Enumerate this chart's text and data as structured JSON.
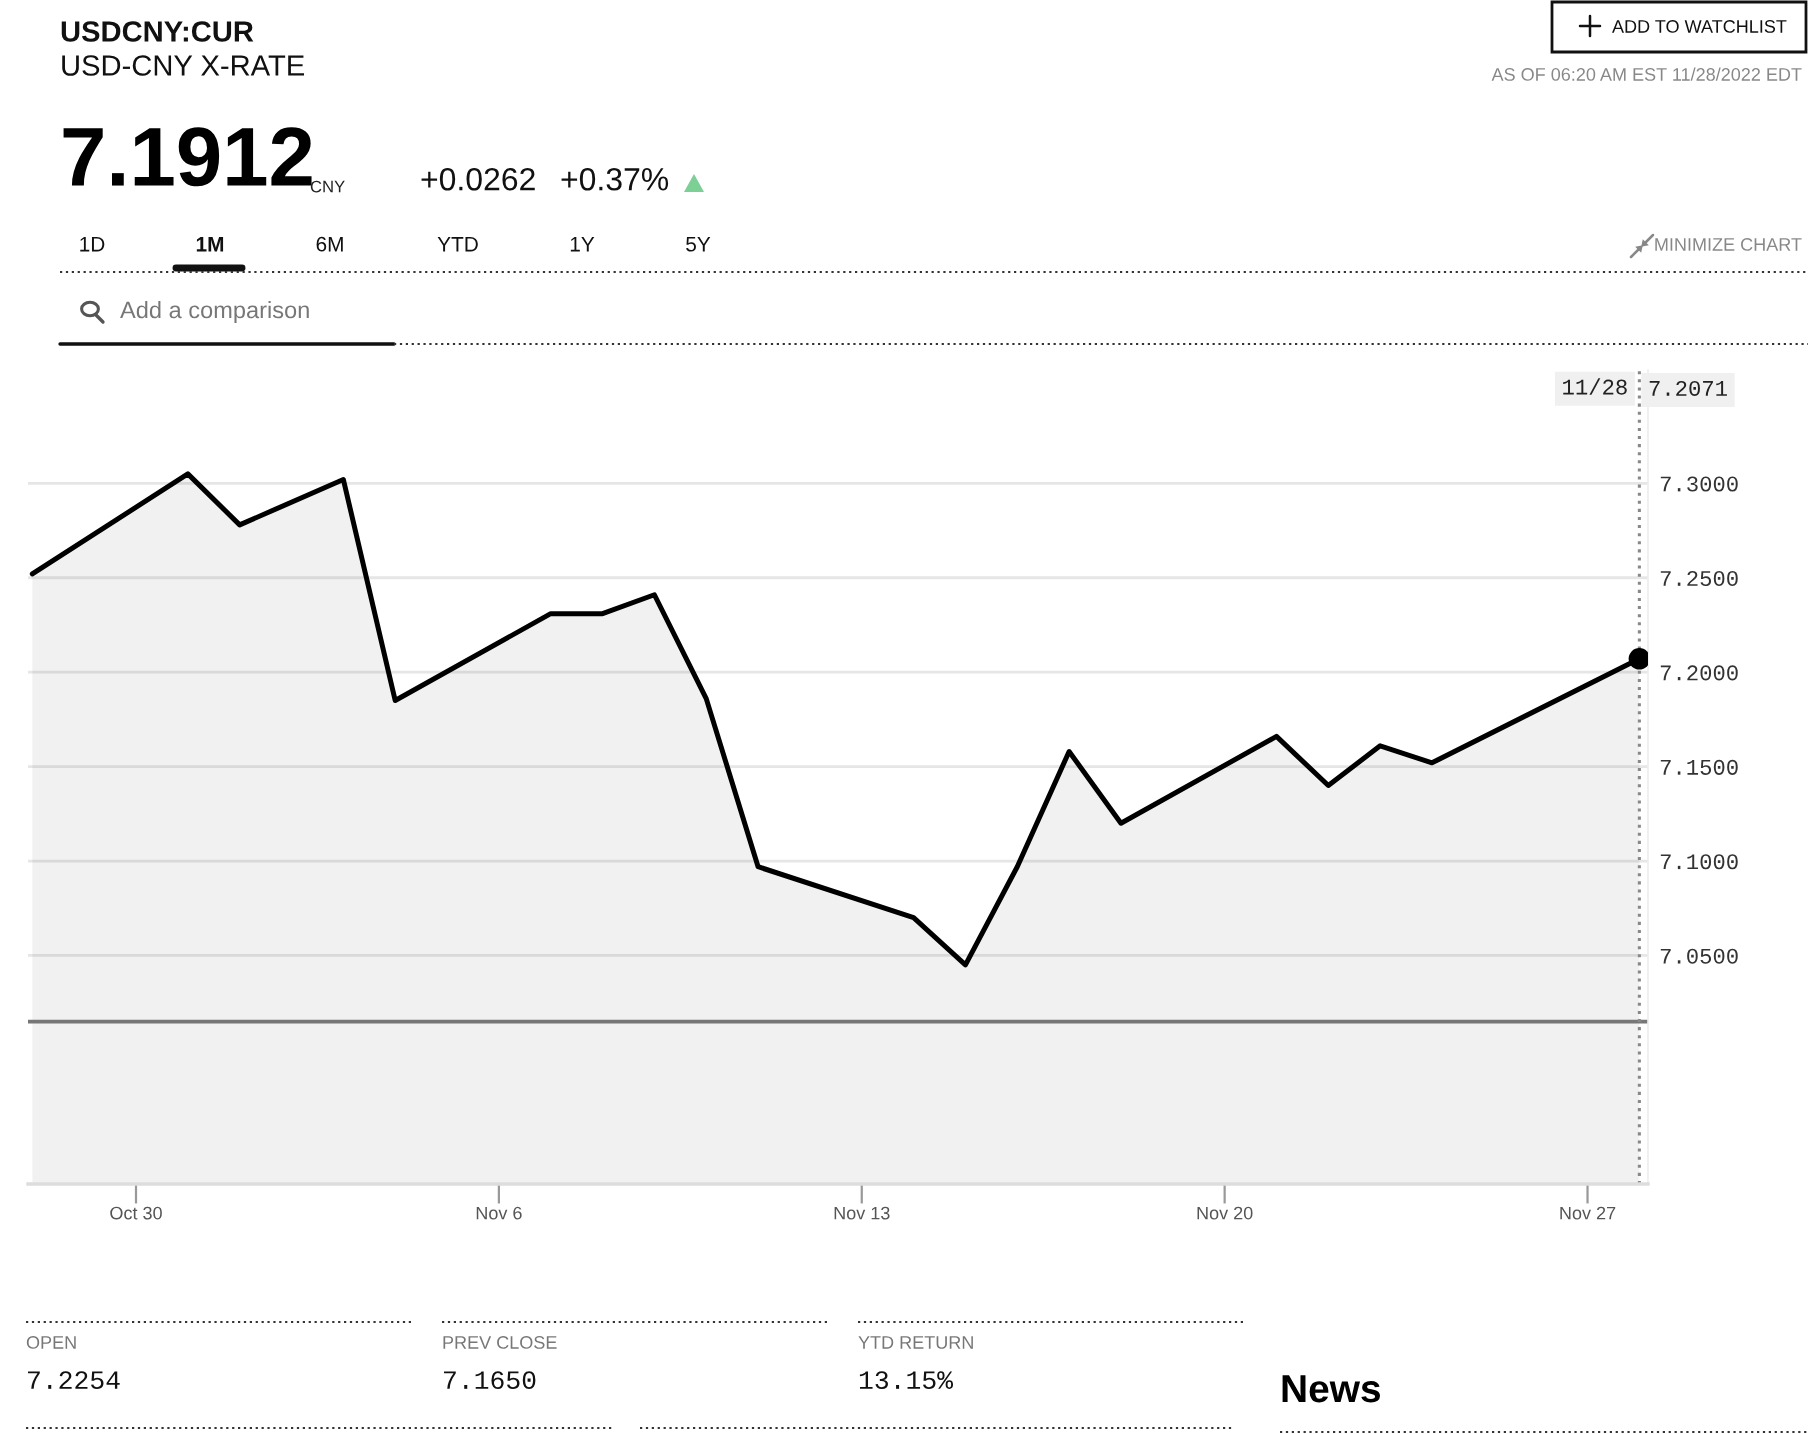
{
  "chart_data": {
    "type": "area",
    "title": "USDCNY:CUR",
    "subtitle": "USD-CNY X-RATE",
    "x": [
      "2022-10-28",
      "2022-10-31",
      "2022-11-01",
      "2022-11-03",
      "2022-11-04",
      "2022-11-07",
      "2022-11-08",
      "2022-11-09",
      "2022-11-10",
      "2022-11-11",
      "2022-11-14",
      "2022-11-15",
      "2022-11-16",
      "2022-11-17",
      "2022-11-18",
      "2022-11-21",
      "2022-11-22",
      "2022-11-23",
      "2022-11-24",
      "2022-11-28"
    ],
    "series": [
      {
        "color": "#000000",
        "values": [
          7.252,
          7.305,
          7.278,
          7.302,
          7.185,
          7.231,
          7.231,
          7.241,
          7.186,
          7.097,
          7.07,
          7.045,
          7.097,
          7.158,
          7.12,
          7.166,
          7.14,
          7.161,
          7.152,
          7.2071
        ]
      },
      {
        "type": "scatter",
        "x": [
          "2022-11-28"
        ],
        "values": [
          7.2071
        ],
        "color": "#000000",
        "marker": "circle"
      }
    ],
    "xlim": [
      "2022-10-27T22:00",
      "2022-11-28T04:00"
    ],
    "xticks": [
      {
        "value": "2022-10-30",
        "label": "Oct 30"
      },
      {
        "value": "2022-11-06",
        "label": "Nov 6"
      },
      {
        "value": "2022-11-13",
        "label": "Nov 13"
      },
      {
        "value": "2022-11-20",
        "label": "Nov 20"
      },
      {
        "value": "2022-11-27",
        "label": "Nov 27"
      }
    ],
    "ylim": [
      6.929,
      7.36
    ],
    "yticks": [
      {
        "value": 7.05,
        "label": "7.0500"
      },
      {
        "value": 7.1,
        "label": "7.1000"
      },
      {
        "value": 7.15,
        "label": "7.1500"
      },
      {
        "value": 7.2,
        "label": "7.2000"
      },
      {
        "value": 7.25,
        "label": "7.2500"
      },
      {
        "value": 7.3,
        "label": "7.3000"
      }
    ],
    "grid": "y",
    "ref_lines": [
      {
        "axis": "y",
        "value": 7.015,
        "color": "#777777"
      },
      {
        "axis": "x",
        "value": "2022-11-28",
        "label": "11/28",
        "color": "#888888",
        "line_style": "dotted"
      }
    ],
    "annotations": [
      "7.2071",
      "7.1912",
      "CNY",
      "+0.0262",
      "+0.37%",
      "1D",
      "1M",
      "6M",
      "YTD",
      "1Y",
      "5Y",
      "Add a comparison",
      "ADD TO WATCHLIST",
      "AS OF 06:20 AM EST 11/28/2022 EDT",
      "MINIMIZE CHART",
      "OPEN",
      "7.2254",
      "PREV CLOSE",
      "7.1650",
      "YTD RETURN",
      "13.15%",
      "News"
    ]
  }
}
